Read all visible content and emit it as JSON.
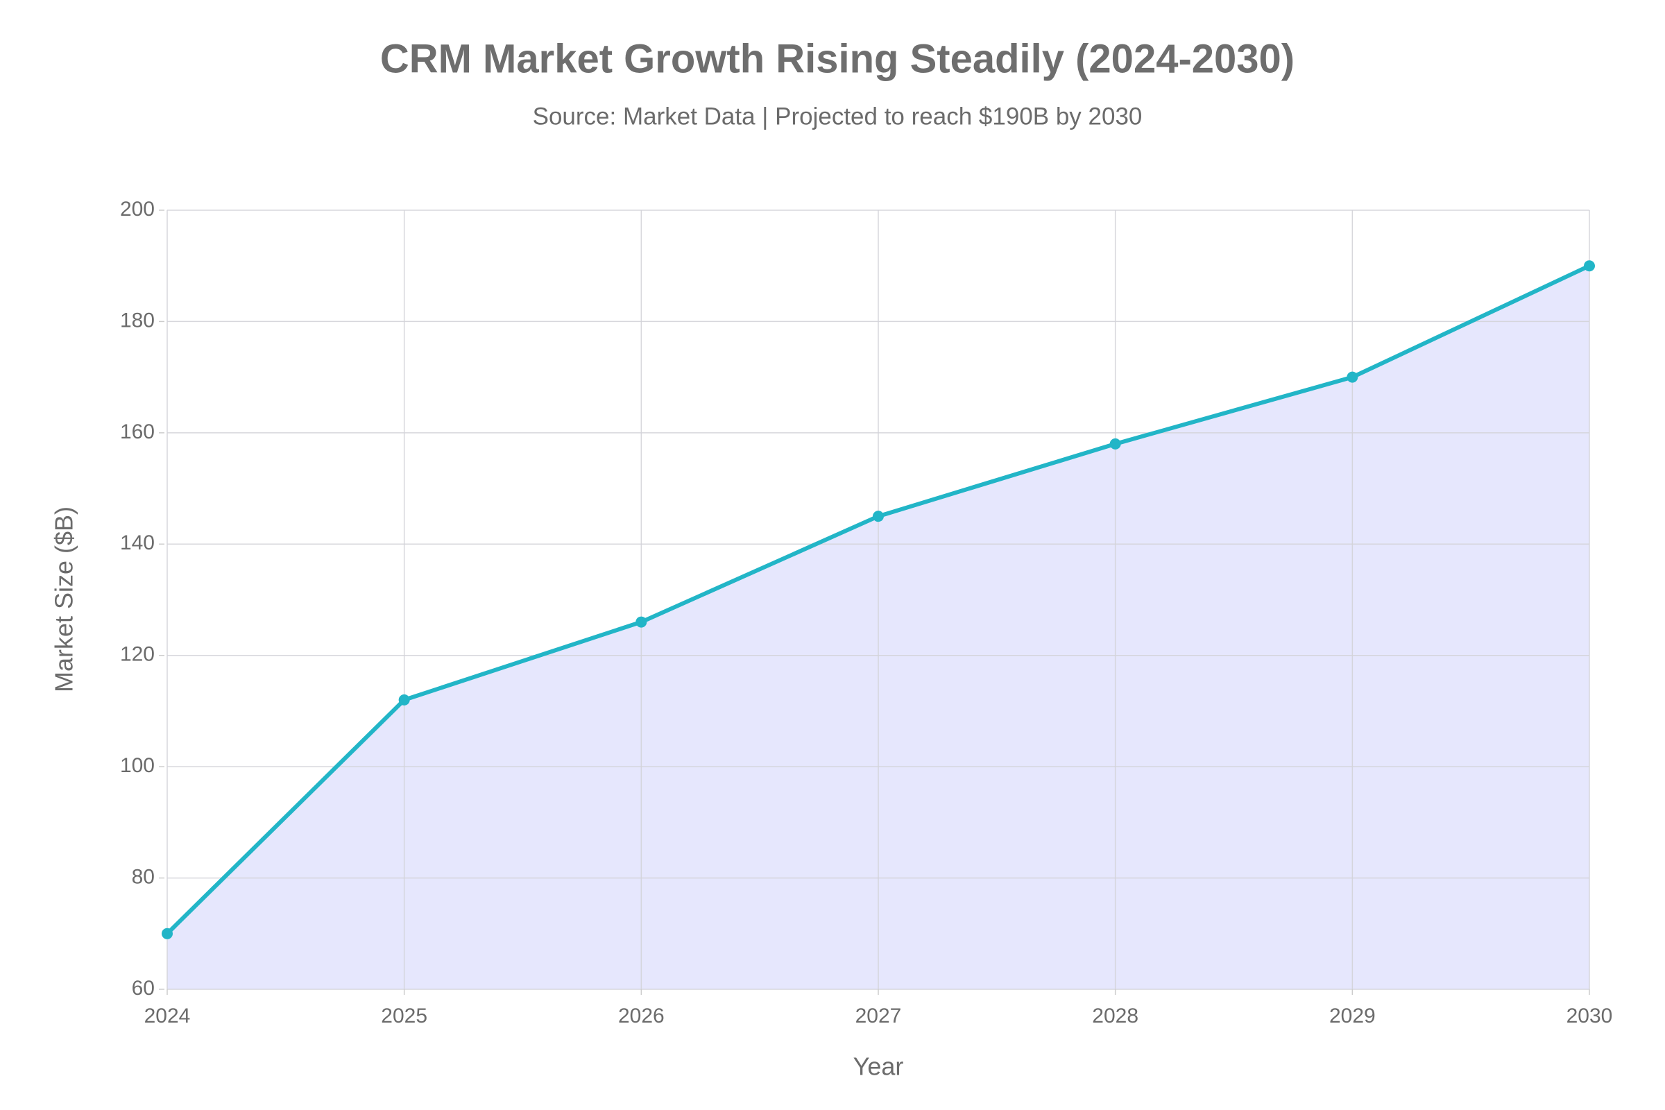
{
  "chart_data": {
    "type": "area",
    "title": "CRM Market Growth Rising Steadily (2024-2030)",
    "subtitle": "Source: Market Data | Projected to reach $190B by 2030",
    "x_label": "Year",
    "y_label": "Market Size ($B)",
    "x": [
      2024,
      2025,
      2026,
      2027,
      2028,
      2029,
      2030
    ],
    "values": [
      70,
      112,
      126,
      145,
      158,
      170,
      190
    ],
    "color": "#22b5c7",
    "fill_color": "#e6e7fd",
    "xlim": [
      2024,
      2030
    ],
    "xticks": [
      2024,
      2025,
      2026,
      2027,
      2028,
      2029,
      2030
    ],
    "ylim": [
      60,
      200
    ],
    "yticks": [
      60,
      80,
      100,
      120,
      140,
      160,
      180,
      200
    ],
    "grid": true
  }
}
